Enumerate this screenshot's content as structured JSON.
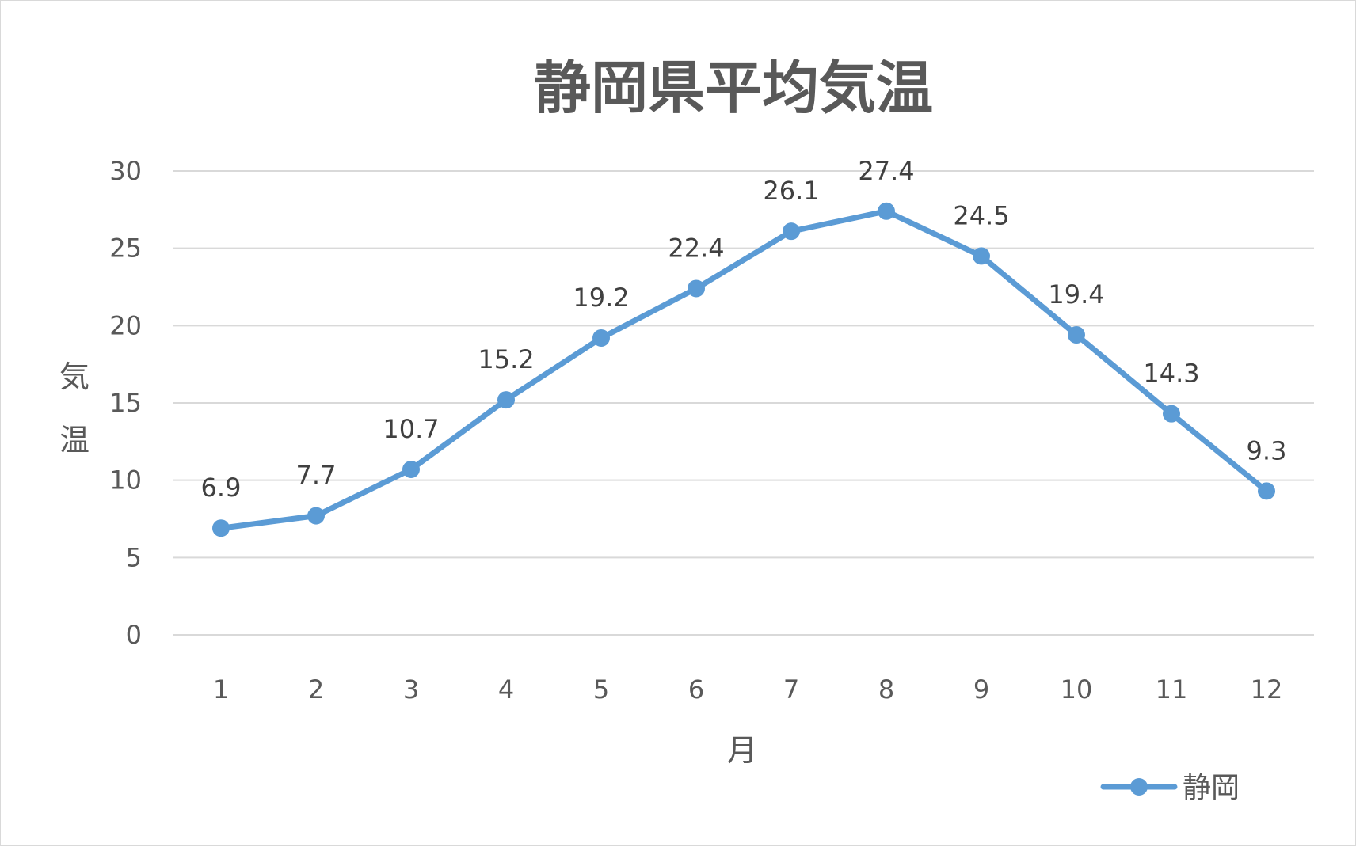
{
  "chart_data": {
    "type": "line",
    "title": "静岡県平均気温",
    "xlabel": "月",
    "ylabel": "気温",
    "categories": [
      "1",
      "2",
      "3",
      "4",
      "5",
      "6",
      "7",
      "8",
      "9",
      "10",
      "11",
      "12"
    ],
    "series": [
      {
        "name": "静岡",
        "values": [
          6.9,
          7.7,
          10.7,
          15.2,
          19.2,
          22.4,
          26.1,
          27.4,
          24.5,
          19.4,
          14.3,
          9.3
        ],
        "color": "#5b9bd5"
      }
    ],
    "ylim": [
      0,
      30
    ],
    "yticks": [
      "0",
      "5",
      "10",
      "15",
      "20",
      "25",
      "30"
    ],
    "grid": true,
    "legend": "bottom-right",
    "data_labels": true
  }
}
